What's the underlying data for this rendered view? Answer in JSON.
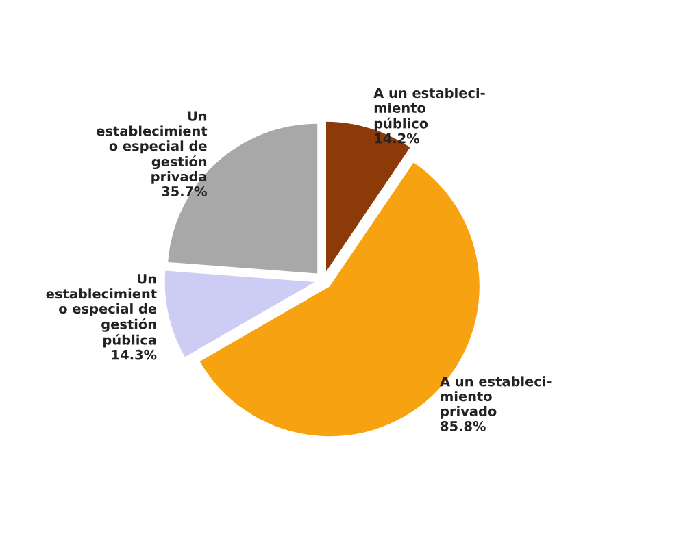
{
  "chart_data": {
    "type": "pie",
    "categories": [
      "A un estableci-\nmiento\npúblico",
      "A un estableci-\nmiento\nprivado",
      "Un\nestablecimient\no especial de\ngestión\npública",
      "Un\nestablecimient\no especial de\ngestión\nprivada"
    ],
    "values": [
      14.2,
      85.8,
      14.3,
      35.7
    ],
    "value_labels": [
      "14.2%",
      "85.8%",
      "14.3%",
      "35.7%"
    ],
    "colors": [
      "#8b3a08",
      "#f7a211",
      "#ccccf5",
      "#a8a8a8"
    ],
    "legend": false
  }
}
